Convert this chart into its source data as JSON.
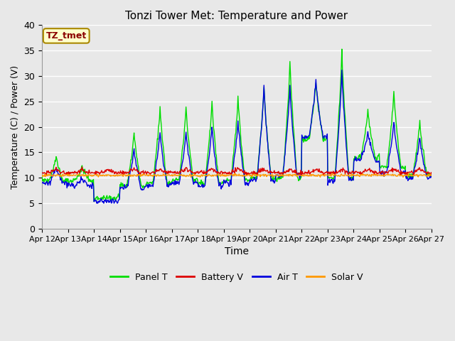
{
  "title": "Tonzi Tower Met: Temperature and Power",
  "xlabel": "Time",
  "ylabel": "Temperature (C) / Power (V)",
  "ylim": [
    0,
    40
  ],
  "yticks": [
    0,
    5,
    10,
    15,
    20,
    25,
    30,
    35,
    40
  ],
  "x_labels": [
    "Apr 12",
    "Apr 13",
    "Apr 14",
    "Apr 15",
    "Apr 16",
    "Apr 17",
    "Apr 18",
    "Apr 19",
    "Apr 20",
    "Apr 21",
    "Apr 22",
    "Apr 23",
    "Apr 24",
    "Apr 25",
    "Apr 26",
    "Apr 27"
  ],
  "annotation_text": "TZ_tmet",
  "annotation_color": "#8B0000",
  "annotation_bg": "#FFFFCC",
  "annotation_border": "#AA8800",
  "colors": {
    "panel_t": "#00DD00",
    "battery_v": "#DD0000",
    "air_t": "#0000DD",
    "solar_v": "#FF9900"
  },
  "legend_labels": [
    "Panel T",
    "Battery V",
    "Air T",
    "Solar V"
  ],
  "bg_color": "#E8E8E8",
  "fig_bg_color": "#E8E8E8"
}
